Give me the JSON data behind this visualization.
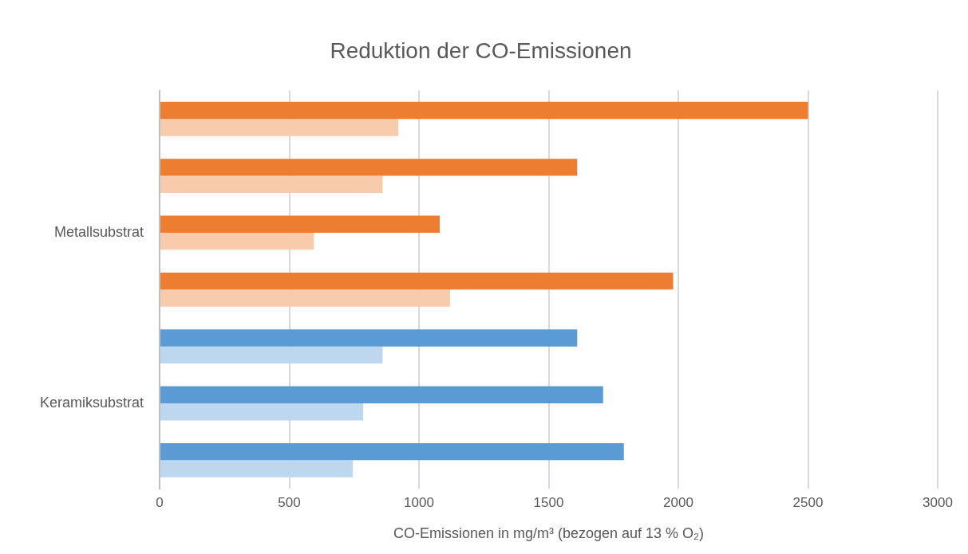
{
  "chart_data": {
    "type": "bar",
    "orientation": "horizontal",
    "title": "Reduktion der CO-Emissionen",
    "xlabel": "CO-Emissionen in mg/m³ (bezogen auf 13 % O₂)",
    "categories": [
      null,
      null,
      "Metallsubstrat",
      null,
      null,
      "Keramiksubstrat",
      null
    ],
    "series": [
      {
        "colors": [
          "#ed7d31",
          "#ed7d31",
          "#ed7d31",
          "#ed7d31",
          "#5b9bd5",
          "#5b9bd5",
          "#5b9bd5"
        ],
        "values": [
          2500,
          1610,
          1080,
          1980,
          1610,
          1710,
          1790
        ]
      },
      {
        "colors": [
          "#f8cbad",
          "#f8cbad",
          "#f8cbad",
          "#f8cbad",
          "#bdd7ee",
          "#bdd7ee",
          "#bdd7ee"
        ],
        "values": [
          920,
          860,
          595,
          1120,
          860,
          785,
          745
        ]
      }
    ],
    "xlim": [
      0,
      3000
    ],
    "xticks": [
      0,
      500,
      1000,
      1500,
      2000,
      2500,
      3000
    ],
    "grid": "x",
    "legend": false
  }
}
